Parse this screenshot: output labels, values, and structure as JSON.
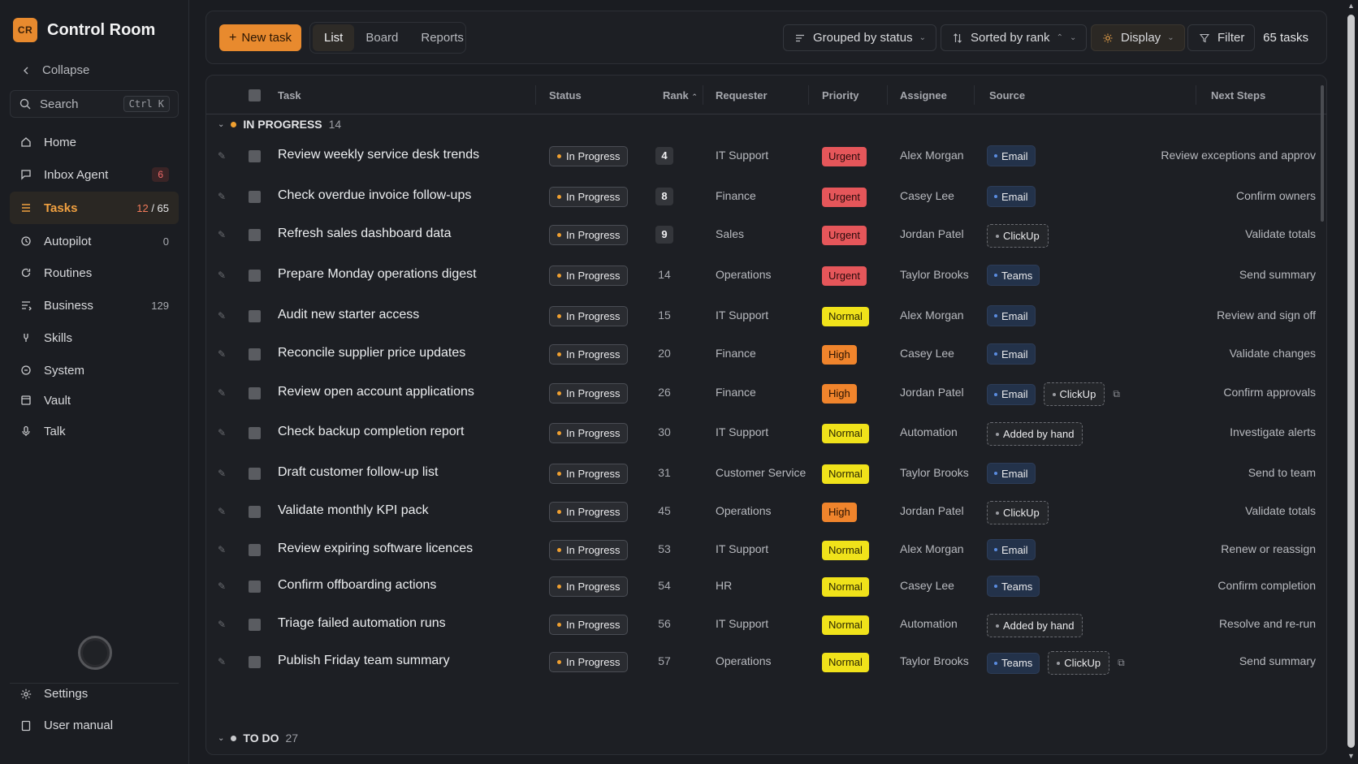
{
  "app": {
    "logo_text": "CR",
    "title": "Control Room"
  },
  "sidebar": {
    "collapse_label": "Collapse",
    "search_label": "Search",
    "search_shortcut": "Ctrl K",
    "items": [
      {
        "label": "Home",
        "icon": "home-icon",
        "count": ""
      },
      {
        "label": "Inbox Agent",
        "icon": "inbox-icon",
        "badge": "6"
      },
      {
        "label": "Tasks",
        "icon": "list-icon",
        "count_active": "12",
        "count_total": "/ 65"
      },
      {
        "label": "Autopilot",
        "icon": "autopilot-icon",
        "count": "0"
      },
      {
        "label": "Routines",
        "icon": "refresh-icon",
        "count": ""
      },
      {
        "label": "Business",
        "icon": "business-icon",
        "count": "129"
      },
      {
        "label": "Skills",
        "icon": "skills-icon",
        "count": ""
      },
      {
        "label": "System",
        "icon": "system-icon",
        "count": ""
      },
      {
        "label": "Vault",
        "icon": "vault-icon",
        "count": ""
      },
      {
        "label": "Talk",
        "icon": "mic-icon",
        "count": ""
      }
    ],
    "settings_label": "Settings",
    "manual_label": "User manual"
  },
  "toolbar": {
    "new_task_label": "New task",
    "views": [
      "List",
      "Board",
      "Reports"
    ],
    "active_view": "List",
    "group_label": "Grouped by status",
    "sort_label": "Sorted by rank",
    "display_label": "Display",
    "filter_label": "Filter",
    "task_count": "65 tasks"
  },
  "columns": {
    "task": "Task",
    "status": "Status",
    "rank": "Rank",
    "requester": "Requester",
    "priority": "Priority",
    "assignee": "Assignee",
    "source": "Source",
    "next_steps": "Next Steps"
  },
  "groups": [
    {
      "name": "IN PROGRESS",
      "count": "14",
      "color": "#f0a030"
    },
    {
      "name": "TO DO",
      "count": "27",
      "color": "#c8c9cc"
    }
  ],
  "rows": [
    {
      "task": "Review weekly service desk trends",
      "status": "In Progress",
      "rank": "4",
      "rank_highlight": true,
      "requester": "IT Support",
      "priority": "Urgent",
      "assignee": "Alex Morgan",
      "sources": [
        "Email"
      ],
      "next": "Review exceptions and approv"
    },
    {
      "task": "Check overdue invoice follow-ups",
      "status": "In Progress",
      "rank": "8",
      "rank_highlight": true,
      "requester": "Finance",
      "priority": "Urgent",
      "assignee": "Casey Lee",
      "sources": [
        "Email"
      ],
      "next": "Confirm owners"
    },
    {
      "task": "Refresh sales dashboard data",
      "status": "In Progress",
      "rank": "9",
      "rank_highlight": true,
      "requester": "Sales",
      "priority": "Urgent",
      "assignee": "Jordan Patel",
      "sources": [
        "ClickUp"
      ],
      "next": "Validate totals"
    },
    {
      "task": "Prepare Monday operations digest",
      "status": "In Progress",
      "rank": "14",
      "rank_highlight": false,
      "requester": "Operations",
      "priority": "Urgent",
      "assignee": "Taylor Brooks",
      "sources": [
        "Teams"
      ],
      "next": "Send summary"
    },
    {
      "task": "Audit new starter access",
      "status": "In Progress",
      "rank": "15",
      "rank_highlight": false,
      "requester": "IT Support",
      "priority": "Normal",
      "assignee": "Alex Morgan",
      "sources": [
        "Email"
      ],
      "next": "Review and sign off"
    },
    {
      "task": "Reconcile supplier price updates",
      "status": "In Progress",
      "rank": "20",
      "rank_highlight": false,
      "requester": "Finance",
      "priority": "High",
      "assignee": "Casey Lee",
      "sources": [
        "Email"
      ],
      "next": "Validate changes"
    },
    {
      "task": "Review open account applications",
      "status": "In Progress",
      "rank": "26",
      "rank_highlight": false,
      "requester": "Finance",
      "priority": "High",
      "assignee": "Jordan Patel",
      "sources": [
        "Email",
        "ClickUp"
      ],
      "external": true,
      "next": "Confirm approvals"
    },
    {
      "task": "Check backup completion report",
      "status": "In Progress",
      "rank": "30",
      "rank_highlight": false,
      "requester": "IT Support",
      "priority": "Normal",
      "assignee": "Automation",
      "sources": [
        "Added by hand"
      ],
      "next": "Investigate alerts"
    },
    {
      "task": "Draft customer follow-up list",
      "status": "In Progress",
      "rank": "31",
      "rank_highlight": false,
      "requester": "Customer Service",
      "priority": "Normal",
      "assignee": "Taylor Brooks",
      "sources": [
        "Email"
      ],
      "next": "Send to team"
    },
    {
      "task": "Validate monthly KPI pack",
      "status": "In Progress",
      "rank": "45",
      "rank_highlight": false,
      "requester": "Operations",
      "priority": "High",
      "assignee": "Jordan Patel",
      "sources": [
        "ClickUp"
      ],
      "next": "Validate totals"
    },
    {
      "task": "Review expiring software licences",
      "status": "In Progress",
      "rank": "53",
      "rank_highlight": false,
      "requester": "IT Support",
      "priority": "Normal",
      "assignee": "Alex Morgan",
      "sources": [
        "Email"
      ],
      "next": "Renew or reassign"
    },
    {
      "task": "Confirm offboarding actions",
      "status": "In Progress",
      "rank": "54",
      "rank_highlight": false,
      "requester": "HR",
      "priority": "Normal",
      "assignee": "Casey Lee",
      "sources": [
        "Teams"
      ],
      "next": "Confirm completion"
    },
    {
      "task": "Triage failed automation runs",
      "status": "In Progress",
      "rank": "56",
      "rank_highlight": false,
      "requester": "IT Support",
      "priority": "Normal",
      "assignee": "Automation",
      "sources": [
        "Added by hand"
      ],
      "next": "Resolve and re-run"
    },
    {
      "task": "Publish Friday team summary",
      "status": "In Progress",
      "rank": "57",
      "rank_highlight": false,
      "requester": "Operations",
      "priority": "Normal",
      "assignee": "Taylor Brooks",
      "sources": [
        "Teams",
        "ClickUp"
      ],
      "external": true,
      "next": "Send summary"
    }
  ]
}
